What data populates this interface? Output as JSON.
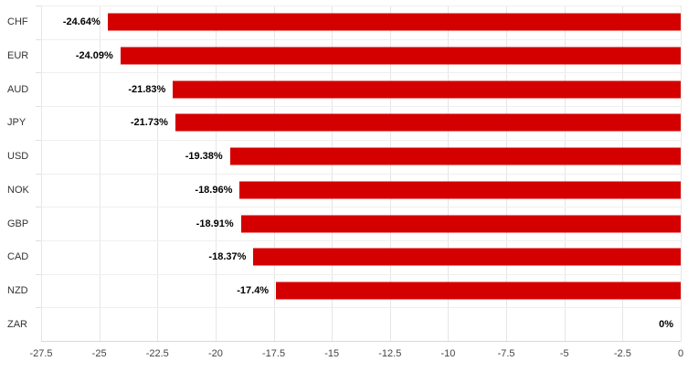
{
  "chart_data": {
    "type": "bar",
    "orientation": "horizontal",
    "title": "",
    "xlabel": "",
    "ylabel": "",
    "categories": [
      "CHF",
      "EUR",
      "AUD",
      "JPY",
      "USD",
      "NOK",
      "GBP",
      "CAD",
      "NZD",
      "ZAR"
    ],
    "values": [
      -24.64,
      -24.09,
      -21.83,
      -21.73,
      -19.38,
      -18.96,
      -18.91,
      -18.37,
      -17.4,
      0
    ],
    "data_labels": [
      "-24.64%",
      "-24.09%",
      "-21.83%",
      "-21.73%",
      "-19.38%",
      "-18.96%",
      "-18.91%",
      "-18.37%",
      "-17.4%",
      "0%"
    ],
    "xlim": [
      -27.5,
      0
    ],
    "x_ticks": [
      -27.5,
      -25,
      -22.5,
      -20,
      -17.5,
      -15,
      -12.5,
      -10,
      -7.5,
      -5,
      -2.5,
      0
    ],
    "x_tick_labels": [
      "-27.5",
      "-25",
      "-22.5",
      "-20",
      "-17.5",
      "-15",
      "-12.5",
      "-10",
      "-7.5",
      "-5",
      "-2.5",
      "0"
    ],
    "bar_color": "#d40000",
    "grid": true,
    "legend": "none",
    "background_color": "#ffffff"
  }
}
